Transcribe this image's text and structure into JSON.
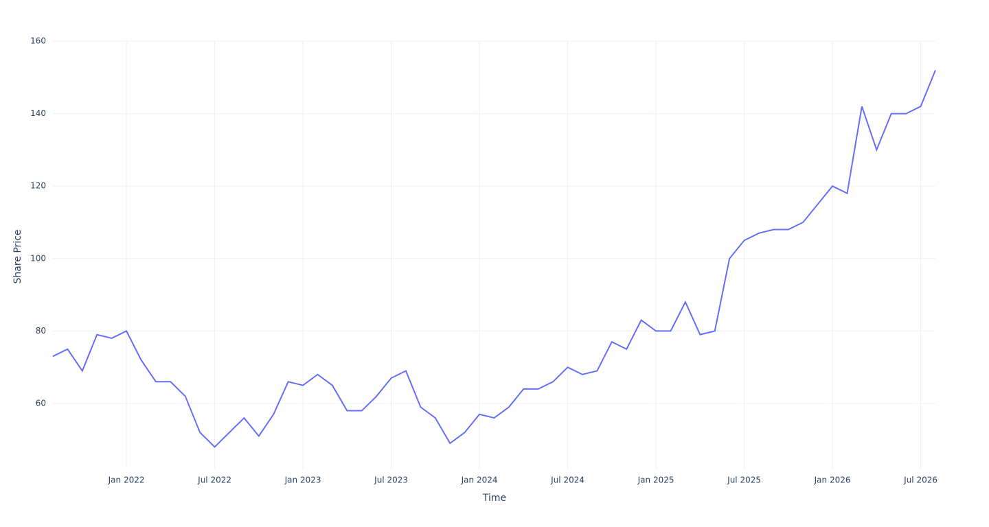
{
  "chart_data": {
    "type": "line",
    "x_label": "Time",
    "y_label": "Share Price",
    "x": [
      "2021-08",
      "2021-09",
      "2021-10",
      "2021-11",
      "2021-12",
      "2022-01",
      "2022-02",
      "2022-03",
      "2022-04",
      "2022-05",
      "2022-06",
      "2022-07",
      "2022-08",
      "2022-09",
      "2022-10",
      "2022-11",
      "2022-12",
      "2023-01",
      "2023-02",
      "2023-03",
      "2023-04",
      "2023-05",
      "2023-06",
      "2023-07",
      "2023-08",
      "2023-09",
      "2023-10",
      "2023-11",
      "2023-12",
      "2024-01",
      "2024-02",
      "2024-03",
      "2024-04",
      "2024-05",
      "2024-06",
      "2024-07",
      "2024-08",
      "2024-09",
      "2024-10",
      "2024-11",
      "2024-12",
      "2025-01",
      "2025-02",
      "2025-03",
      "2025-04",
      "2025-05",
      "2025-06",
      "2025-07",
      "2025-08",
      "2025-09",
      "2025-10",
      "2025-11",
      "2025-12",
      "2026-01",
      "2026-02",
      "2026-03",
      "2026-04",
      "2026-05",
      "2026-06",
      "2026-07",
      "2026-08"
    ],
    "series": [
      {
        "name": "Share Price",
        "color": "#636efa",
        "values": [
          73,
          75,
          69,
          79,
          78,
          80,
          72,
          66,
          66,
          62,
          52,
          48,
          52,
          56,
          51,
          57,
          66,
          65,
          68,
          65,
          58,
          58,
          62,
          67,
          69,
          59,
          56,
          49,
          52,
          57,
          56,
          59,
          64,
          64,
          66,
          70,
          68,
          69,
          77,
          75,
          83,
          80,
          80,
          88,
          79,
          80,
          100,
          105,
          107,
          108,
          108,
          110,
          115,
          120,
          118,
          142,
          130,
          140,
          140,
          142,
          152
        ]
      }
    ],
    "xlim": [
      "2021-08",
      "2026-08"
    ],
    "xticks": [
      {
        "value": "2022-01",
        "label": "Jan 2022"
      },
      {
        "value": "2022-07",
        "label": "Jul 2022"
      },
      {
        "value": "2023-01",
        "label": "Jan 2023"
      },
      {
        "value": "2023-07",
        "label": "Jul 2023"
      },
      {
        "value": "2024-01",
        "label": "Jan 2024"
      },
      {
        "value": "2024-07",
        "label": "Jul 2024"
      },
      {
        "value": "2025-01",
        "label": "Jan 2025"
      },
      {
        "value": "2025-07",
        "label": "Jul 2025"
      },
      {
        "value": "2026-01",
        "label": "Jan 2026"
      },
      {
        "value": "2026-07",
        "label": "Jul 2026"
      }
    ],
    "ylim": [
      42,
      160
    ],
    "yticks": [
      60,
      80,
      100,
      120,
      140,
      160
    ],
    "grid": true
  }
}
